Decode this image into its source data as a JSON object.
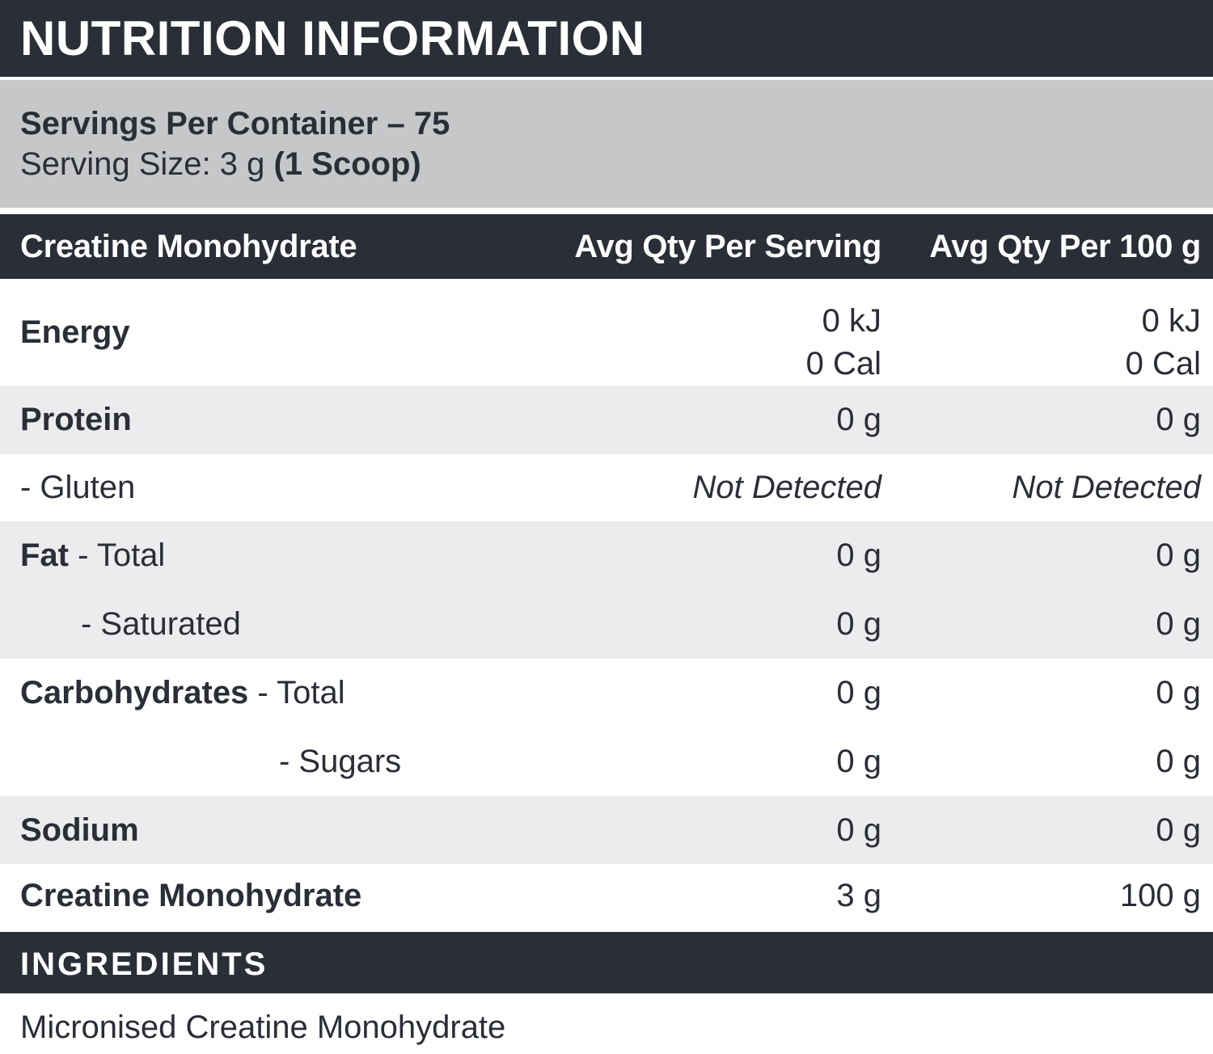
{
  "title": "NUTRITION INFORMATION",
  "serving_info": {
    "servings_per_container": "Servings Per Container – 75",
    "serving_size_prefix": "Serving Size: 3 g ",
    "serving_size_bold": "(1 Scoop)"
  },
  "table": {
    "header": {
      "col_product": "Creatine Monohydrate",
      "col_per_serving": "Avg Qty Per Serving",
      "col_per_100g": "Avg Qty Per 100 g"
    },
    "rows": [
      {
        "label": {
          "bold": "Energy",
          "rest": ""
        },
        "serving": [
          "0 kJ",
          "0 Cal"
        ],
        "per100": [
          "0 kJ",
          "0 Cal"
        ]
      },
      {
        "label": {
          "bold": "Protein",
          "rest": ""
        },
        "serving": "0 g",
        "per100": "0 g"
      },
      {
        "label": {
          "bold": "",
          "rest": "- Gluten"
        },
        "serving": "Not Detected",
        "per100": "Not Detected"
      },
      {
        "lines": [
          {
            "label": {
              "bold": "Fat",
              "rest": " - Total"
            },
            "serving": "0 g",
            "per100": "0 g"
          },
          {
            "label": {
              "bold": "",
              "rest": "- Saturated"
            },
            "serving": "0 g",
            "per100": "0 g"
          }
        ]
      },
      {
        "lines": [
          {
            "label": {
              "bold": "Carbohydrates",
              "rest": " - Total"
            },
            "serving": "0 g",
            "per100": "0 g"
          },
          {
            "label": {
              "bold": "",
              "rest": "- Sugars"
            },
            "serving": "0 g",
            "per100": "0 g"
          }
        ]
      },
      {
        "label": {
          "bold": "Sodium",
          "rest": ""
        },
        "serving": "0 g",
        "per100": "0 g"
      },
      {
        "label": {
          "bold": "Creatine Monohydrate",
          "rest": ""
        },
        "serving": "3 g",
        "per100": "100 g"
      }
    ]
  },
  "ingredients": {
    "heading": "INGREDIENTS",
    "body": "Micronised Creatine Monohydrate"
  },
  "colors": {
    "dark_bar": "#2A2E36",
    "serving_band_gray": "#C6C7C8",
    "shaded_row_gray": "#ECECEE",
    "text": "#2A2E36",
    "background": "#FFFFFF"
  }
}
